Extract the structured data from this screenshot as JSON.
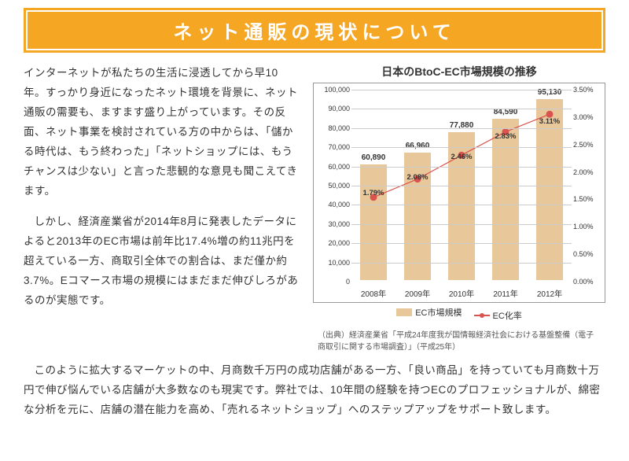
{
  "title": "ネット通販の現状について",
  "paragraphs": {
    "p1": "インターネットが私たちの生活に浸透してから早10年。すっかり身近になったネット環境を背景に、ネット通販の需要も、ますます盛り上がっています。その反面、ネット事業を検討されている方の中からは、「儲かる時代は、もう終わった」「ネットショップには、もうチャンスは少ない」と言った悲観的な意見も聞こえてきます。",
    "p2": "しかし、経済産業省が2014年8月に発表したデータによると2013年のEC市場は前年比17.4%増の約11兆円を超えている一方、商取引全体での割合は、まだ僅か約3.7%。Eコマース市場の規模にはまだまだ伸びしろがあるのが実態です。",
    "p3": "このように拡大するマーケットの中、月商数千万円の成功店舗がある一方、「良い商品」を持っていても月商数十万円で伸び悩んでいる店舗が大多数なのも現実です。弊社では、10年間の経験を持つECのプロフェッショナルが、綿密な分析を元に、店舗の潜在能力を高め、「売れるネットショップ」へのステップアップをサポート致します。"
  },
  "chart": {
    "title": "日本のBtoC-EC市場規模の推移",
    "bar_color": "#e8c89b",
    "line_color": "#d9534f",
    "grid_color": "#cccccc",
    "y_left": {
      "min": 0,
      "max": 100000,
      "step": 10000
    },
    "y_right": {
      "min": 0,
      "max": 3.5,
      "step": 0.5,
      "suffix": "%"
    },
    "categories": [
      "2008年",
      "2009年",
      "2010年",
      "2011年",
      "2012年"
    ],
    "bar_values": [
      60890,
      66960,
      77880,
      84590,
      95130
    ],
    "line_values": [
      1.79,
      2.08,
      2.46,
      2.83,
      3.11
    ],
    "legend": {
      "bar": "EC市場規模",
      "line": "EC化率"
    },
    "source": "（出典）経済産業省「平成24年度我が国情報経済社会における基盤整備（電子商取引に関する市場調査）」（平成25年）"
  }
}
